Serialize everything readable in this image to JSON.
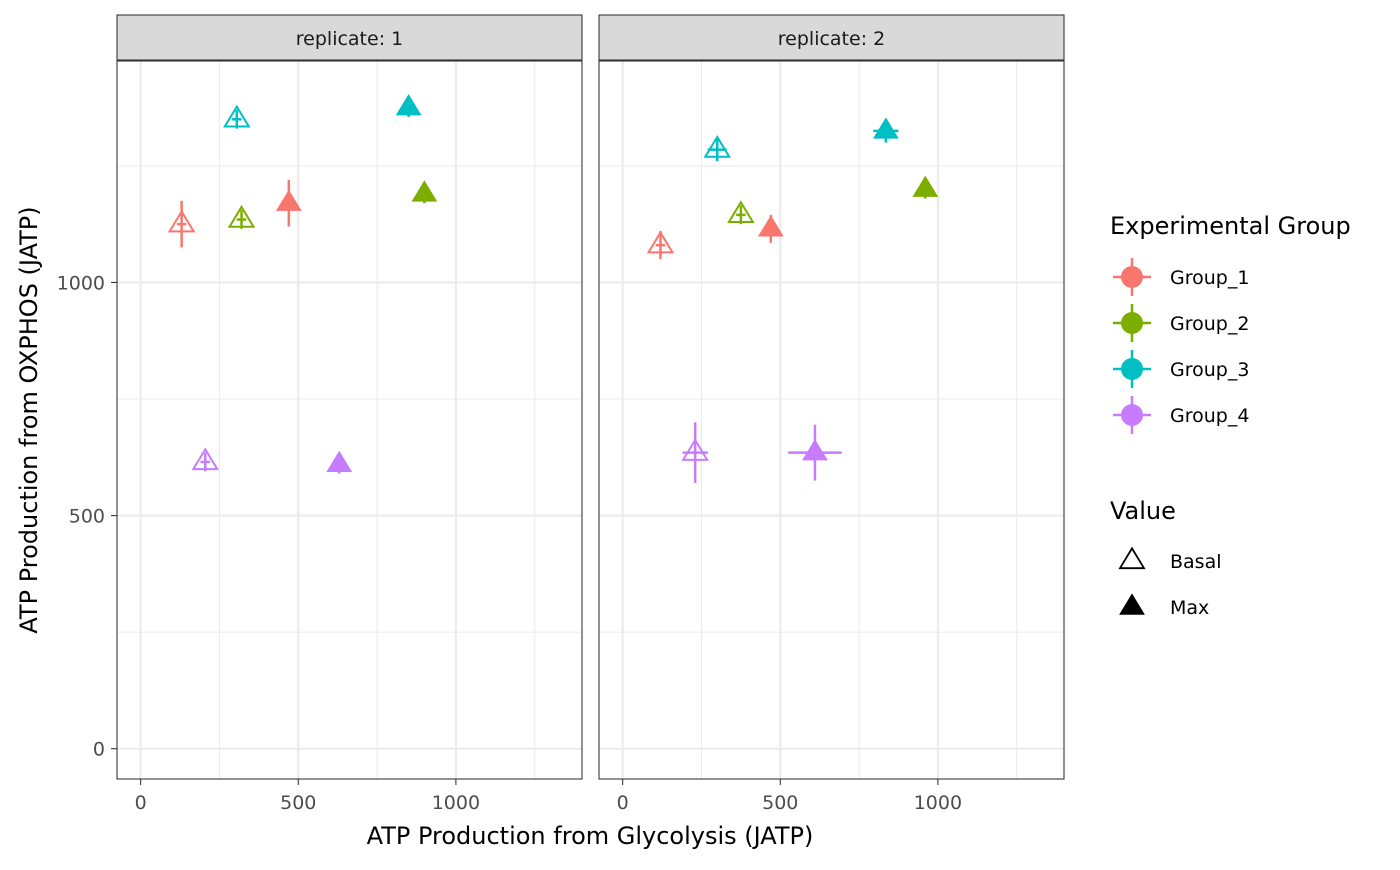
{
  "chart_data": {
    "type": "scatter",
    "xlabel": "ATP Production from Glycolysis (JATP)",
    "ylabel": "ATP Production from OXPHOS (JATP)",
    "xlim": [
      -75,
      1400
    ],
    "ylim": [
      -65,
      1475
    ],
    "x_ticks": [
      0,
      500,
      1000
    ],
    "y_ticks": [
      0,
      500,
      1000
    ],
    "x_tick_labels": [
      "0",
      "500",
      "1000"
    ],
    "y_tick_labels": [
      "0",
      "500",
      "1000"
    ],
    "grid": true,
    "facet_labels": [
      "replicate: 1",
      "replicate: 2"
    ],
    "legend": {
      "placement": "right",
      "color_title": "Experimental Group",
      "shape_title": "Value",
      "groups": [
        {
          "name": "Group_1",
          "color": "#F8766D"
        },
        {
          "name": "Group_2",
          "color": "#7CAE00"
        },
        {
          "name": "Group_3",
          "color": "#00BFC4"
        },
        {
          "name": "Group_4",
          "color": "#C77CFF"
        }
      ],
      "shapes": [
        {
          "name": "Basal",
          "fill": "open"
        },
        {
          "name": "Max",
          "fill": "solid"
        }
      ]
    },
    "panels": [
      {
        "label": "replicate: 1",
        "points": [
          {
            "group": "Group_1",
            "value": "Basal",
            "x": 130,
            "y": 1125,
            "x_err": 15,
            "y_err": 50
          },
          {
            "group": "Group_1",
            "value": "Max",
            "x": 470,
            "y": 1170,
            "x_err": 15,
            "y_err": 50
          },
          {
            "group": "Group_2",
            "value": "Basal",
            "x": 320,
            "y": 1135,
            "x_err": 15,
            "y_err": 20
          },
          {
            "group": "Group_2",
            "value": "Max",
            "x": 900,
            "y": 1190,
            "x_err": 15,
            "y_err": 20
          },
          {
            "group": "Group_3",
            "value": "Basal",
            "x": 305,
            "y": 1350,
            "x_err": 15,
            "y_err": 20
          },
          {
            "group": "Group_3",
            "value": "Max",
            "x": 850,
            "y": 1375,
            "x_err": 15,
            "y_err": 20
          },
          {
            "group": "Group_4",
            "value": "Basal",
            "x": 205,
            "y": 615,
            "x_err": 15,
            "y_err": 20
          },
          {
            "group": "Group_4",
            "value": "Max",
            "x": 630,
            "y": 610,
            "x_err": 15,
            "y_err": 20
          }
        ]
      },
      {
        "label": "replicate: 2",
        "points": [
          {
            "group": "Group_1",
            "value": "Basal",
            "x": 120,
            "y": 1080,
            "x_err": 15,
            "y_err": 30
          },
          {
            "group": "Group_1",
            "value": "Max",
            "x": 470,
            "y": 1115,
            "x_err": 15,
            "y_err": 30
          },
          {
            "group": "Group_2",
            "value": "Basal",
            "x": 375,
            "y": 1145,
            "x_err": 15,
            "y_err": 20
          },
          {
            "group": "Group_2",
            "value": "Max",
            "x": 960,
            "y": 1200,
            "x_err": 15,
            "y_err": 20
          },
          {
            "group": "Group_3",
            "value": "Basal",
            "x": 300,
            "y": 1285,
            "x_err": 30,
            "y_err": 25
          },
          {
            "group": "Group_3",
            "value": "Max",
            "x": 835,
            "y": 1325,
            "x_err": 40,
            "y_err": 25
          },
          {
            "group": "Group_4",
            "value": "Basal",
            "x": 230,
            "y": 635,
            "x_err": 40,
            "y_err": 65
          },
          {
            "group": "Group_4",
            "value": "Max",
            "x": 610,
            "y": 635,
            "x_err": 85,
            "y_err": 60
          }
        ]
      }
    ]
  }
}
